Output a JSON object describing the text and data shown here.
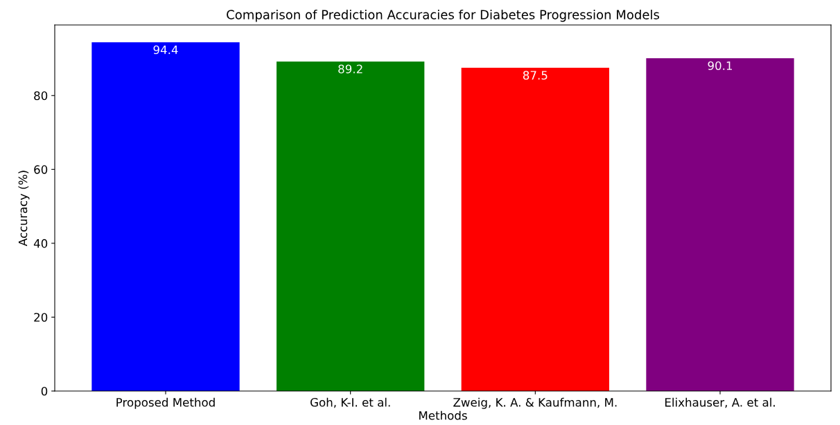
{
  "chart_data": {
    "type": "bar",
    "title": "Comparison of Prediction Accuracies for Diabetes Progression Models",
    "xlabel": "Methods",
    "ylabel": "Accuracy (%)",
    "categories": [
      "Proposed Method",
      "Goh, K-I. et al.",
      "Zweig, K. A. & Kaufmann, M.",
      "Elixhauser, A. et al."
    ],
    "values": [
      94.4,
      89.2,
      87.5,
      90.1
    ],
    "colors": [
      "#0000ff",
      "#008000",
      "#ff0000",
      "#800080"
    ],
    "ylim": [
      0,
      99.1
    ],
    "yticks": [
      0,
      20,
      40,
      60,
      80
    ],
    "grid": false,
    "data_labels": true
  }
}
